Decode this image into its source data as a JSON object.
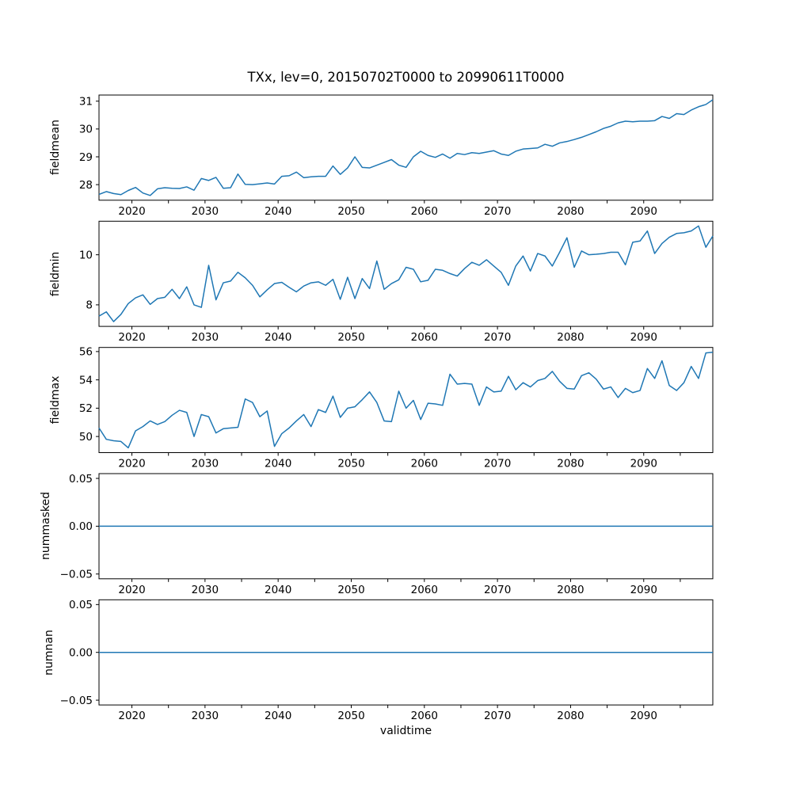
{
  "title": "TXx, lev=0, 20150702T0000 to 20990611T0000",
  "xlabel": "validtime",
  "line_color": "#1f77b4",
  "background_color": "#ffffff",
  "x_axis": {
    "xlim": [
      2015.5,
      2099.45
    ],
    "tick_positions": [
      2020,
      2025,
      2030,
      2035,
      2040,
      2045,
      2050,
      2055,
      2060,
      2065,
      2070,
      2075,
      2080,
      2085,
      2090,
      2095
    ],
    "labeled_tick_positions": [
      2020,
      2030,
      2040,
      2050,
      2060,
      2070,
      2080,
      2090
    ],
    "tick_labels": [
      "2020",
      "2030",
      "2040",
      "2050",
      "2060",
      "2070",
      "2080",
      "2090"
    ]
  },
  "chart_data": [
    {
      "type": "line",
      "name": "fieldmean",
      "ylabel": "fieldmean",
      "ylim": [
        27.44,
        31.22
      ],
      "yticks": [
        28,
        29,
        30,
        31
      ],
      "yticklabels": [
        "28",
        "29",
        "30",
        "31"
      ],
      "x_start": 2015.5,
      "x_step": 1,
      "values": [
        27.65,
        27.75,
        27.68,
        27.64,
        27.79,
        27.9,
        27.7,
        27.61,
        27.85,
        27.89,
        27.87,
        27.86,
        27.92,
        27.8,
        28.22,
        28.15,
        28.26,
        27.87,
        27.89,
        28.38,
        28.01,
        28.0,
        28.03,
        28.06,
        28.02,
        28.3,
        28.32,
        28.45,
        28.25,
        28.28,
        28.3,
        28.3,
        28.67,
        28.37,
        28.6,
        29.0,
        28.62,
        28.6,
        28.7,
        28.8,
        28.9,
        28.7,
        28.62,
        29.0,
        29.2,
        29.05,
        28.98,
        29.1,
        28.95,
        29.12,
        29.08,
        29.15,
        29.12,
        29.17,
        29.22,
        29.1,
        29.05,
        29.2,
        29.28,
        29.3,
        29.32,
        29.45,
        29.38,
        29.5,
        29.55,
        29.62,
        29.7,
        29.8,
        29.9,
        30.02,
        30.1,
        30.22,
        30.28,
        30.26,
        30.28,
        30.28,
        30.3,
        30.45,
        30.38,
        30.55,
        30.52,
        30.68,
        30.8,
        30.88,
        31.05
      ]
    },
    {
      "type": "line",
      "name": "fieldmin",
      "ylabel": "fieldmin",
      "ylim": [
        7.14,
        11.34
      ],
      "yticks": [
        8,
        10
      ],
      "yticklabels": [
        "8",
        "10"
      ],
      "x_start": 2015.5,
      "x_step": 1,
      "values": [
        7.55,
        7.72,
        7.33,
        7.62,
        8.05,
        8.28,
        8.4,
        8.02,
        8.25,
        8.3,
        8.62,
        8.25,
        8.72,
        8.0,
        7.9,
        9.58,
        8.2,
        8.88,
        8.95,
        9.3,
        9.08,
        8.78,
        8.32,
        8.6,
        8.85,
        8.9,
        8.7,
        8.52,
        8.75,
        8.88,
        8.92,
        8.78,
        9.02,
        8.22,
        9.1,
        8.25,
        9.05,
        8.65,
        9.75,
        8.62,
        8.85,
        9.0,
        9.5,
        9.42,
        8.92,
        8.98,
        9.42,
        9.38,
        9.25,
        9.15,
        9.45,
        9.7,
        9.58,
        9.8,
        9.55,
        9.3,
        8.78,
        9.55,
        9.95,
        9.35,
        10.05,
        9.95,
        9.55,
        10.1,
        10.68,
        9.5,
        10.15,
        10.0,
        10.02,
        10.05,
        10.1,
        10.1,
        9.6,
        10.5,
        10.55,
        10.95,
        10.05,
        10.45,
        10.7,
        10.85,
        10.88,
        10.95,
        11.15,
        10.3,
        10.75
      ]
    },
    {
      "type": "line",
      "name": "fieldmax",
      "ylabel": "fieldmax",
      "ylim": [
        48.86,
        56.29
      ],
      "yticks": [
        50,
        52,
        54,
        56
      ],
      "yticklabels": [
        "50",
        "52",
        "54",
        "56"
      ],
      "x_start": 2015.5,
      "x_step": 1,
      "values": [
        50.6,
        49.8,
        49.7,
        49.65,
        49.2,
        50.4,
        50.7,
        51.1,
        50.85,
        51.05,
        51.5,
        51.85,
        51.7,
        50.0,
        51.55,
        51.4,
        50.25,
        50.55,
        50.6,
        50.65,
        52.65,
        52.4,
        51.4,
        51.8,
        49.3,
        50.2,
        50.6,
        51.1,
        51.55,
        50.7,
        51.9,
        51.7,
        52.85,
        51.35,
        52.0,
        52.1,
        52.6,
        53.15,
        52.4,
        51.1,
        51.05,
        53.2,
        52.0,
        52.55,
        51.2,
        52.35,
        52.3,
        52.2,
        54.4,
        53.7,
        53.75,
        53.7,
        52.2,
        53.5,
        53.15,
        53.2,
        54.25,
        53.3,
        53.8,
        53.5,
        53.95,
        54.1,
        54.6,
        53.9,
        53.4,
        53.35,
        54.3,
        54.5,
        54.05,
        53.35,
        53.5,
        52.75,
        53.4,
        53.1,
        53.25,
        54.8,
        54.1,
        55.35,
        53.6,
        53.25,
        53.8,
        54.95,
        54.1,
        55.9,
        55.95
      ]
    },
    {
      "type": "line",
      "name": "nummasked",
      "ylabel": "nummasked",
      "ylim": [
        -0.055,
        0.055
      ],
      "yticks": [
        0.05,
        0.0,
        -0.05
      ],
      "yticklabels": [
        "0.05",
        "0.00",
        "−0.05"
      ],
      "x_start": 2015.5,
      "x_step": 1,
      "constant_value": 0.0
    },
    {
      "type": "line",
      "name": "numnan",
      "ylabel": "numnan",
      "ylim": [
        -0.055,
        0.055
      ],
      "yticks": [
        0.05,
        0.0,
        -0.05
      ],
      "yticklabels": [
        "0.05",
        "0.00",
        "−0.05"
      ],
      "x_start": 2015.5,
      "x_step": 1,
      "constant_value": 0.0
    }
  ]
}
